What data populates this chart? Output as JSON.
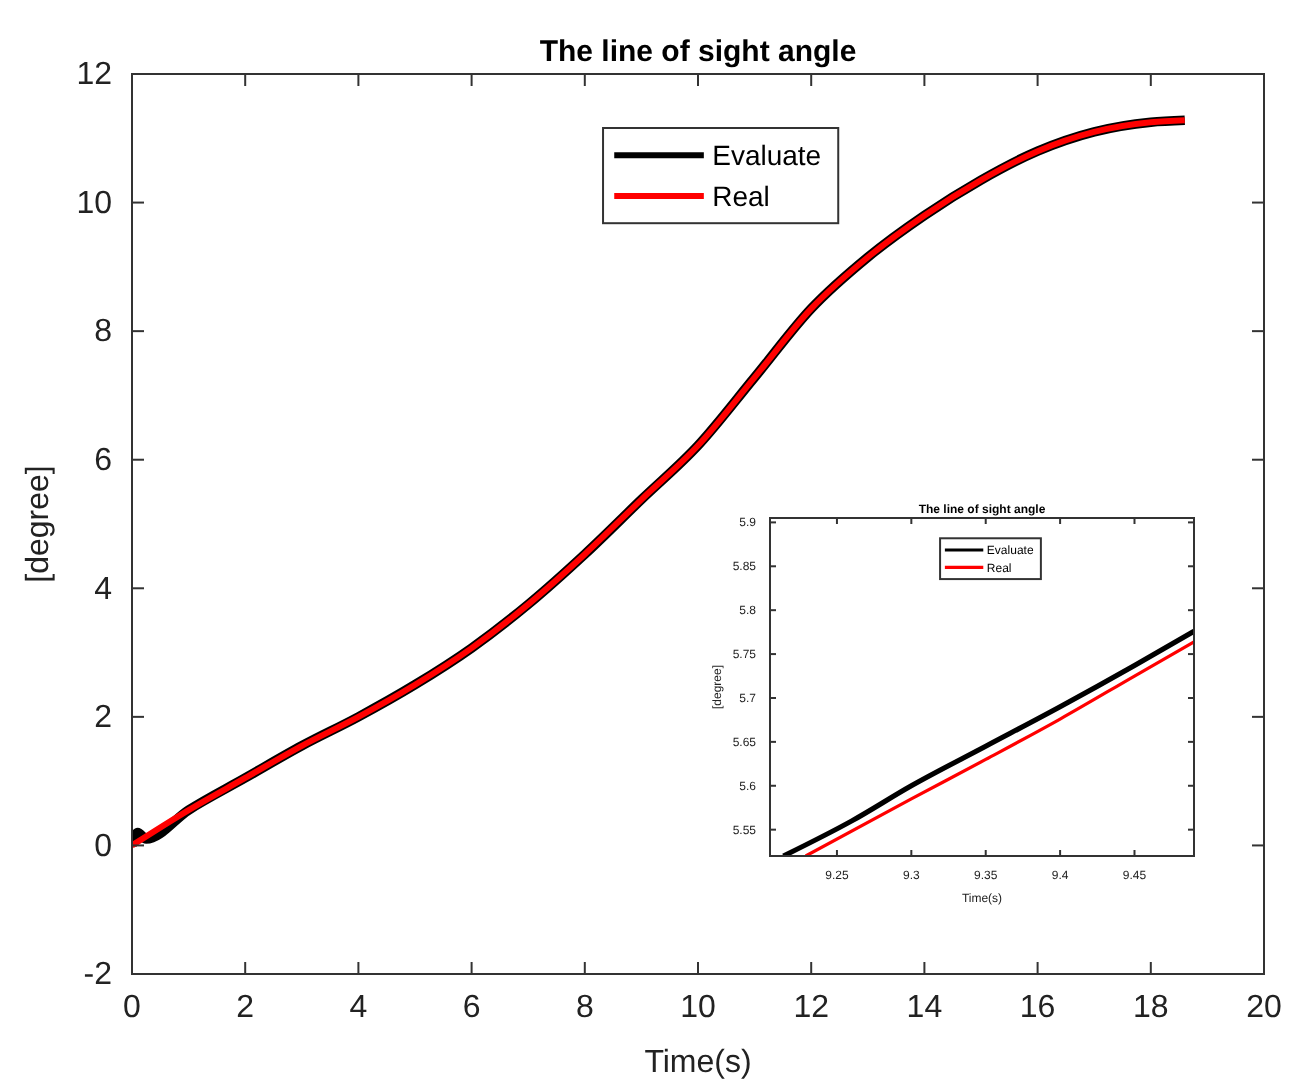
{
  "chart_data": [
    {
      "type": "line",
      "title": "The line of sight angle",
      "xlabel": "Time(s)",
      "ylabel": "[degree]",
      "xlim": [
        0,
        20
      ],
      "xticks": [
        0,
        2,
        4,
        6,
        8,
        10,
        12,
        14,
        16,
        18,
        20
      ],
      "ylim": [
        -2,
        12
      ],
      "yticks": [
        -2,
        0,
        2,
        4,
        6,
        8,
        10,
        12
      ],
      "legend": "top",
      "grid": false,
      "series": [
        {
          "name": "Evaluate",
          "color": "#000000",
          "x": [
            0,
            0.1,
            0.25,
            1,
            2,
            3,
            4,
            5,
            6,
            7,
            8,
            9,
            10,
            11,
            12,
            13,
            14,
            15,
            16,
            17,
            18,
            18.6
          ],
          "values": [
            0,
            0.2,
            0.1,
            0.55,
            1.05,
            1.55,
            2.0,
            2.5,
            3.07,
            3.75,
            4.53,
            5.38,
            6.22,
            7.28,
            8.35,
            9.15,
            9.8,
            10.35,
            10.8,
            11.1,
            11.25,
            11.28
          ]
        },
        {
          "name": "Real",
          "color": "#ff0000",
          "x": [
            0,
            1,
            2,
            3,
            4,
            5,
            6,
            7,
            8,
            9,
            10,
            11,
            12,
            13,
            14,
            15,
            16,
            17,
            18,
            18.6
          ],
          "values": [
            0,
            0.55,
            1.05,
            1.55,
            2.0,
            2.5,
            3.07,
            3.75,
            4.53,
            5.38,
            6.22,
            7.28,
            8.35,
            9.15,
            9.8,
            10.35,
            10.8,
            11.1,
            11.25,
            11.28
          ]
        }
      ]
    },
    {
      "type": "line",
      "title": "The line of sight angle",
      "xlabel": "Time(s)",
      "ylabel": "[degree]",
      "xlim": [
        9.205,
        9.49
      ],
      "xticks": [
        9.25,
        9.3,
        9.35,
        9.4,
        9.45
      ],
      "ylim": [
        5.52,
        5.905
      ],
      "yticks": [
        5.55,
        5.6,
        5.65,
        5.7,
        5.75,
        5.8,
        5.85,
        5.9
      ],
      "legend": "top",
      "grid": false,
      "series": [
        {
          "name": "Evaluate",
          "color": "#000000",
          "x": [
            9.214,
            9.26,
            9.3,
            9.35,
            9.4,
            9.45,
            9.49
          ],
          "values": [
            5.52,
            5.56,
            5.6,
            5.645,
            5.69,
            5.737,
            5.776
          ]
        },
        {
          "name": "Real",
          "color": "#ff0000",
          "x": [
            9.229,
            9.3,
            9.35,
            9.4,
            9.45,
            9.49
          ],
          "values": [
            5.52,
            5.585,
            5.63,
            5.676,
            5.725,
            5.764
          ]
        }
      ]
    }
  ]
}
